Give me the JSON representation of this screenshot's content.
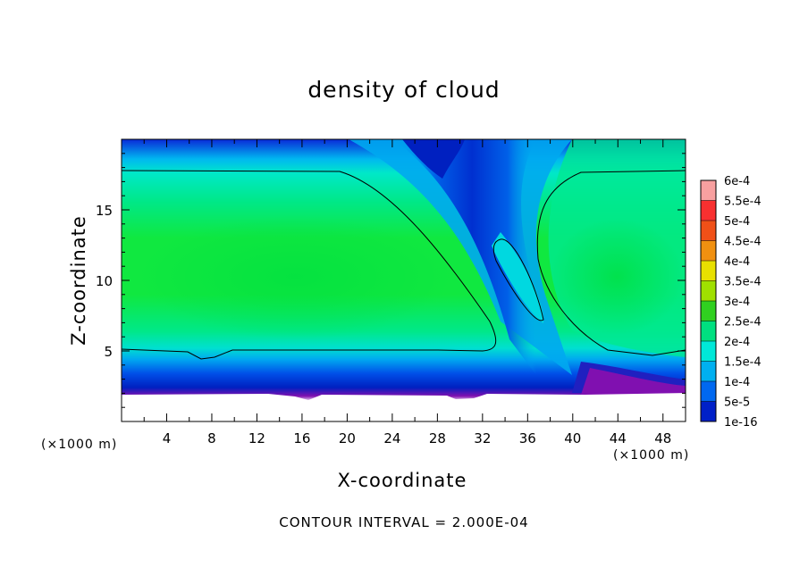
{
  "chart_data": {
    "type": "heatmap",
    "title": "density of cloud",
    "xlabel": "X-coordinate",
    "ylabel": "Z-coordinate",
    "x_unit": "(×1000 m)",
    "x_ticks": [
      4,
      8,
      12,
      16,
      20,
      24,
      28,
      32,
      36,
      40,
      44,
      48
    ],
    "y_ticks": [
      5,
      10,
      15
    ],
    "xlim": [
      0,
      50
    ],
    "ylim": [
      0,
      20
    ],
    "footer": "CONTOUR INTERVAL = 2.000E-04",
    "colorbar": {
      "levels": [
        "6e-4",
        "5.5e-4",
        "5e-4",
        "4.5e-4",
        "4e-4",
        "3.5e-4",
        "3e-4",
        "2.5e-4",
        "2e-4",
        "1.5e-4",
        "1e-4",
        "5e-5",
        "1e-16"
      ],
      "colors": [
        "#f8a0a0",
        "#f83030",
        "#f05018",
        "#f09010",
        "#e8e000",
        "#a0e000",
        "#30d020",
        "#00e080",
        "#00e8d8",
        "#00b0f0",
        "#0068f0",
        "#0020c8",
        "#8010b0"
      ]
    }
  }
}
